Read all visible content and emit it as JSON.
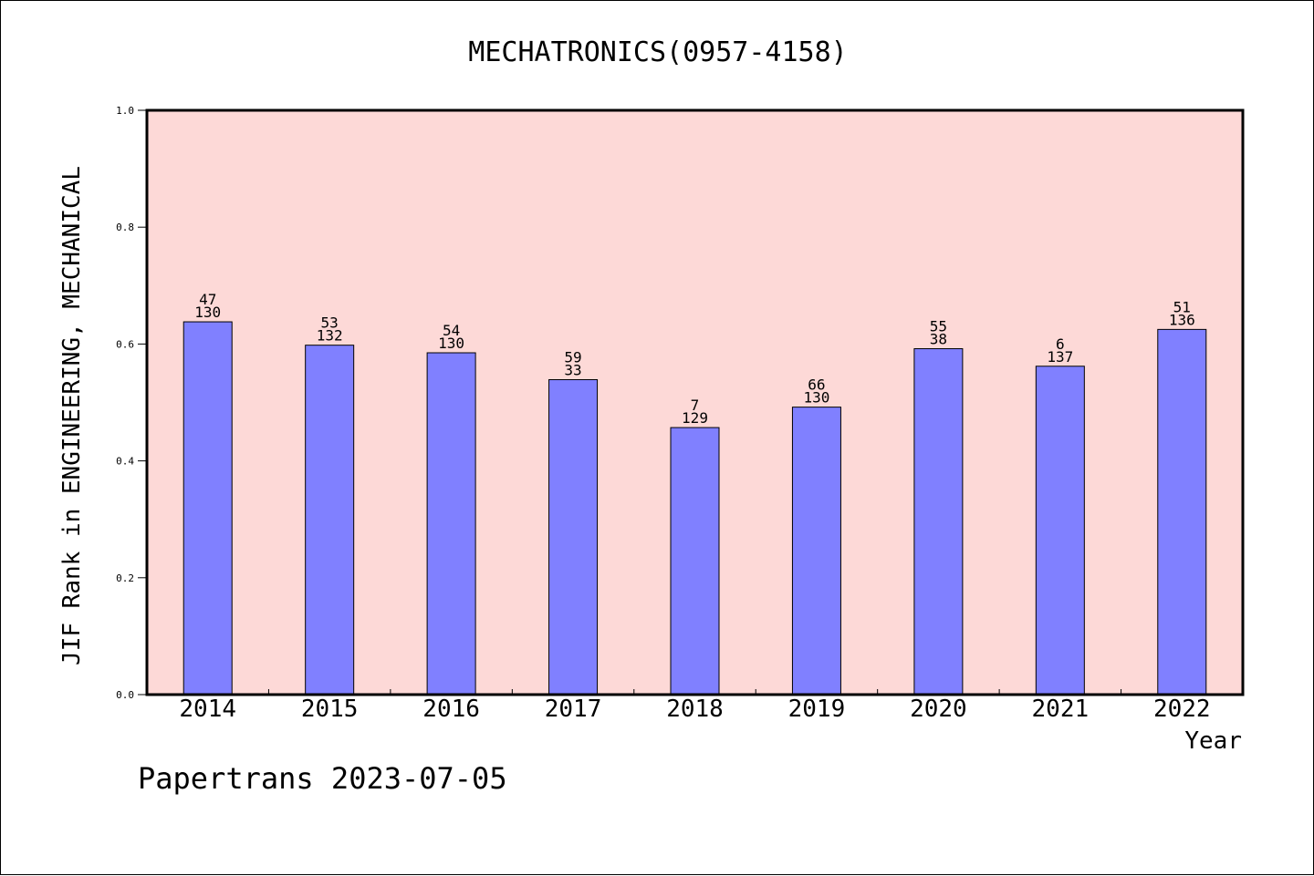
{
  "chart_data": {
    "type": "bar",
    "title": "MECHATRONICS(0957-4158)",
    "xlabel": "Year",
    "ylabel": "JIF Rank in ENGINEERING, MECHANICAL",
    "categories": [
      "2014",
      "2015",
      "2016",
      "2017",
      "2018",
      "2019",
      "2020",
      "2021",
      "2022"
    ],
    "values": [
      0.638,
      0.598,
      0.585,
      0.539,
      0.457,
      0.492,
      0.592,
      0.562,
      0.625
    ],
    "rank": [
      "47",
      "53",
      "54",
      "59",
      "7",
      "66",
      "55",
      "6",
      "51"
    ],
    "total": [
      "130",
      "132",
      "130",
      "33",
      "129",
      "130",
      "38",
      "137",
      "136"
    ],
    "ylim": [
      0,
      1.0
    ],
    "yticks": [
      "0.0",
      "0.2",
      "0.4",
      "0.6",
      "0.8",
      "1.0"
    ],
    "grid": false,
    "legend": "none",
    "colors": {
      "bar": "#8080ff",
      "plot_background": "#fdd9d7",
      "frame": "#000000"
    }
  },
  "footer": "Papertrans 2023-07-05"
}
